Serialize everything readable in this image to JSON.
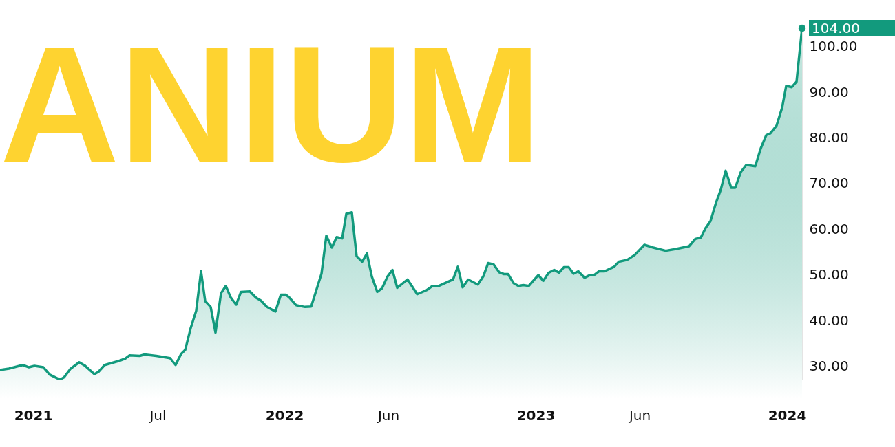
{
  "chart_data": {
    "type": "area",
    "x": [
      "2020-11-14",
      "2020-11-27",
      "2020-12-17",
      "2020-12-26",
      "2021-01-03",
      "2021-01-16",
      "2021-01-25",
      "2021-02-09",
      "2021-02-15",
      "2021-02-24",
      "2021-03-09",
      "2021-03-17",
      "2021-03-31",
      "2021-04-06",
      "2021-04-15",
      "2021-05-06",
      "2021-05-15",
      "2021-05-21",
      "2021-06-05",
      "2021-06-12",
      "2021-06-29",
      "2021-07-19",
      "2021-07-27",
      "2021-08-04",
      "2021-08-10",
      "2021-08-18",
      "2021-08-26",
      "2021-09-02",
      "2021-09-08",
      "2021-09-16",
      "2021-09-23",
      "2021-10-01",
      "2021-10-08",
      "2021-10-15",
      "2021-10-23",
      "2021-10-30",
      "2021-11-12",
      "2021-11-21",
      "2021-11-28",
      "2021-12-06",
      "2021-12-19",
      "2021-12-27",
      "2022-01-03",
      "2022-01-08",
      "2022-01-18",
      "2022-01-31",
      "2022-02-09",
      "2022-02-24",
      "2022-03-03",
      "2022-03-11",
      "2022-03-18",
      "2022-03-26",
      "2022-04-01",
      "2022-04-09",
      "2022-04-16",
      "2022-04-24",
      "2022-05-01",
      "2022-05-08",
      "2022-05-16",
      "2022-05-23",
      "2022-05-31",
      "2022-06-07",
      "2022-06-14",
      "2022-06-29",
      "2022-07-13",
      "2022-07-27",
      "2022-08-04",
      "2022-08-13",
      "2022-09-03",
      "2022-09-10",
      "2022-09-17",
      "2022-09-25",
      "2022-10-09",
      "2022-10-17",
      "2022-10-24",
      "2022-11-01",
      "2022-11-09",
      "2022-11-16",
      "2022-11-22",
      "2022-11-30",
      "2022-12-07",
      "2022-12-14",
      "2022-12-22",
      "2023-01-05",
      "2023-01-12",
      "2023-01-20",
      "2023-01-28",
      "2023-02-04",
      "2023-02-11",
      "2023-02-18",
      "2023-02-25",
      "2023-03-04",
      "2023-03-13",
      "2023-03-21",
      "2023-03-27",
      "2023-04-03",
      "2023-04-11",
      "2023-04-25",
      "2023-05-02",
      "2023-05-14",
      "2023-05-25",
      "2023-06-08",
      "2023-06-21",
      "2023-07-09",
      "2023-07-24",
      "2023-08-12",
      "2023-08-21",
      "2023-08-29",
      "2023-09-05",
      "2023-09-12",
      "2023-09-20",
      "2023-09-27",
      "2023-10-04",
      "2023-10-12",
      "2023-10-18",
      "2023-10-26",
      "2023-11-03",
      "2023-11-16",
      "2023-11-24",
      "2023-12-02",
      "2023-12-08",
      "2023-12-17",
      "2023-12-25",
      "2023-12-31",
      "2024-01-08",
      "2024-01-15",
      "2024-01-23"
    ],
    "series": [
      {
        "color": "#129a7d",
        "values": [
          29.2,
          29.5,
          30.3,
          29.8,
          30.1,
          29.8,
          28.2,
          27.1,
          27.6,
          29.4,
          30.9,
          30.2,
          28.3,
          28.8,
          30.3,
          31.2,
          31.7,
          32.4,
          32.3,
          32.6,
          32.3,
          31.8,
          30.3,
          32.7,
          33.6,
          38.4,
          42.2,
          50.8,
          44.3,
          43.0,
          37.4,
          46.0,
          47.6,
          45.1,
          43.5,
          46.3,
          46.4,
          45.0,
          44.4,
          43.1,
          42.0,
          45.7,
          45.7,
          45.1,
          43.4,
          43.0,
          43.1,
          50.3,
          58.6,
          56.0,
          58.3,
          58.0,
          63.4,
          63.7,
          54.1,
          52.9,
          54.7,
          49.7,
          46.3,
          47.1,
          49.7,
          51.1,
          47.2,
          49.0,
          45.8,
          46.7,
          47.6,
          47.6,
          49.0,
          51.8,
          47.3,
          49.0,
          47.9,
          49.7,
          52.6,
          52.3,
          50.6,
          50.2,
          50.2,
          48.2,
          47.6,
          47.8,
          47.6,
          50.0,
          48.7,
          50.5,
          51.1,
          50.5,
          51.7,
          51.7,
          50.3,
          50.8,
          49.4,
          50.0,
          50.0,
          50.8,
          50.8,
          51.8,
          52.9,
          53.3,
          54.4,
          56.6,
          56.0,
          55.3,
          55.7,
          56.3,
          57.9,
          58.2,
          60.3,
          61.8,
          65.8,
          68.7,
          72.8,
          69.1,
          69.1,
          72.5,
          74.1,
          73.8,
          77.7,
          80.6,
          81.0,
          82.7,
          86.6,
          91.4,
          91.1,
          92.3,
          104
        ]
      },
      {
        "type": "scatter",
        "color": "#129a7d",
        "marker": "circle",
        "x": [
          "2024-01-23"
        ],
        "values": [
          104
        ]
      }
    ],
    "xlim": [
      "2020-11-14",
      "2024-01-23"
    ],
    "ylim": [
      27.1,
      104
    ],
    "xticks": [
      {
        "value": "2021-01-01",
        "label": "2021"
      },
      {
        "value": "2021-07-01",
        "label": "Jul"
      },
      {
        "value": "2022-01-01",
        "label": "2022"
      },
      {
        "value": "2022-06-01",
        "label": "Jun"
      },
      {
        "value": "2023-01-01",
        "label": "2023"
      },
      {
        "value": "2023-06-01",
        "label": "Jun"
      },
      {
        "value": "2024-01-01",
        "label": "2024"
      }
    ],
    "yticks": [
      {
        "value": 30,
        "label": "30.00"
      },
      {
        "value": 40,
        "label": "40.00"
      },
      {
        "value": 50,
        "label": "50.00"
      },
      {
        "value": 60,
        "label": "60.00"
      },
      {
        "value": 70,
        "label": "70.00"
      },
      {
        "value": 80,
        "label": "80.00"
      },
      {
        "value": 90,
        "label": "90.00"
      },
      {
        "value": 100,
        "label": "100.00"
      }
    ],
    "grid": false,
    "annotations": [
      "ANIUM",
      {
        "text": "104.00",
        "x": "2024-01-23",
        "y": 104
      }
    ]
  }
}
